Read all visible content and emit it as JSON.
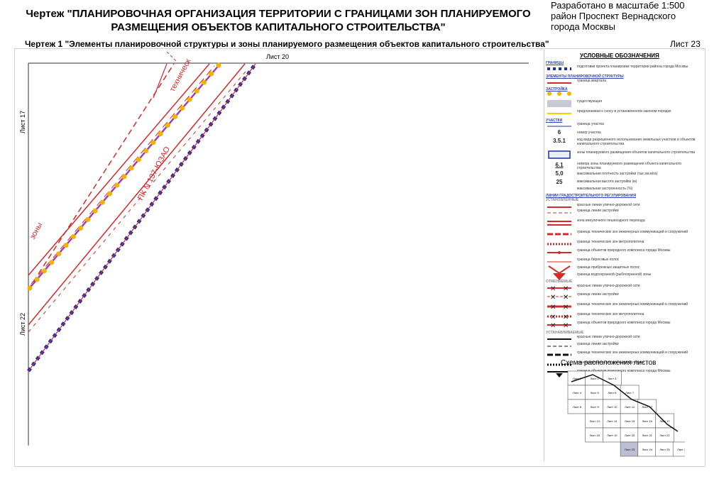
{
  "header": {
    "title_line1": "Чертеж \"ПЛАНИРОВОЧНАЯ ОРГАНИЗАЦИЯ ТЕРРИТОРИИ С ГРАНИЦАМИ ЗОН ПЛАНИРУЕМОГО",
    "title_line2": "РАЗМЕЩЕНИЯ ОБЪЕКТОВ КАПИТАЛЬНОГО СТРОИТЕЛЬСТВА\"",
    "scale_line1": "Разработано в масштабе 1:500",
    "scale_line2": "район Проспект Вернадского",
    "scale_line3": "города Москвы",
    "subtitle": "Чертеж 1 \"Элементы планировочной структуры и зоны планируемого размещения объектов капитального строительства\"",
    "sheet": "Лист 23"
  },
  "map": {
    "sheet_top": "Лист 20",
    "sheet_left_upper": "Лист 17",
    "sheet_left_lower": "Лист 22",
    "label_pk": "ПК N 137-ЮЗАО",
    "label_tech": "техническ",
    "label_zone": "зоны",
    "colors": {
      "red": "#d42a2a",
      "blue": "#1c2fa8",
      "yellow": "#f2b400",
      "purple": "#a03fb0"
    }
  },
  "legend": {
    "title": "УСЛОВНЫЕ ОБОЗНАЧЕНИЯ",
    "sections": {
      "borders": "ГРАНИЦЫ",
      "elements": "ЭЛЕМЕНТЫ ПЛАНИРОВОЧНОЙ СТРУКТУРЫ",
      "buildings": "ЗАСТРОЙКА",
      "plots": "УЧАСТКИ",
      "lines": "ЛИНИИ ГРАДОСТРОИТЕЛЬНОГО РЕГУЛИРОВАНИЯ",
      "established": "УСТАНОВЛЕННЫЕ",
      "cancelled": "ОТМЕНЯЕМЫЕ",
      "planned": "УСТАНАВЛИВАЕМЫЕ"
    },
    "items": [
      "подготовки проекта планировки территории района города Москвы",
      "граница квартала",
      "существующая",
      "предлагаемая к сносу в установленном законом порядке",
      "граница участка",
      "номер участка",
      "код вида разрешенного использования земельных участков и объектов капитального строительства",
      "зоны планируемого размещения объектов капитального строительства",
      "номера зоны планируемого размещения объекта капитального строительства",
      "максимальная плотность застройки (тыс.кв.м/га)",
      "максимальная высота застройки (м)",
      "максимальная застроенность (%)",
      "красные линии улично-дорожной сети",
      "граница линии застройки",
      "зона внеуличного пешеходного перехода",
      "граница технических зон инженерных коммуникаций и сооружений",
      "граница технических зон метрополитена",
      "граница объектов природного комплекса города Москвы",
      "граница береговых полос",
      "граница прибрежных защитных полос",
      "граница водоохранной (рыбоохранной) зоны",
      "красные линии улично-дорожной сети",
      "граница линии застройки",
      "граница технических зон инженерных коммуникаций и сооружений",
      "граница технических зон метрополитена",
      "граница объектов природного комплекса города Москвы",
      "красные линии улично-дорожной сети",
      "граница линии застройки",
      "граница технических зон инженерных коммуникаций и сооружений",
      "граница технических зон метрополитена",
      "граница объектов природного комплекса города Москвы"
    ],
    "numbers": {
      "plot_no": "6",
      "use_code": "3.5.1",
      "zone_no": "6.1",
      "density": "5,0",
      "height": "25"
    }
  },
  "scheme": {
    "title": "Схема расположения листов",
    "sheets": [
      "Лист 1",
      "Лист 2",
      "Лист 3",
      "Лист 4",
      "Лист 5",
      "Лист 6",
      "Лист 7",
      "Лист 8",
      "Лист 9",
      "Лист 10",
      "Лист 11",
      "Лист 12",
      "Лист 13",
      "Лист 14",
      "Лист 15",
      "Лист 16",
      "Лист 17",
      "Лист 18",
      "Лист 19",
      "Лист 20",
      "Лист 21",
      "Лист 22",
      "Лист 23",
      "Лист 24",
      "Лист 25",
      "Лист 26"
    ],
    "current": "Лист 23"
  }
}
